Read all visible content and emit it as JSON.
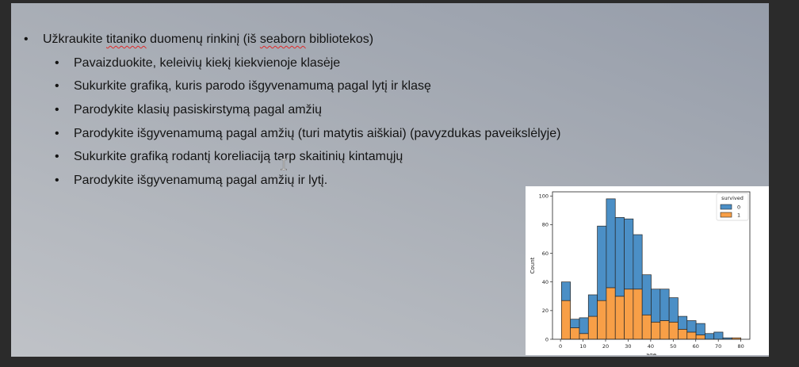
{
  "slide": {
    "bullet": "•",
    "main_item": {
      "segments": [
        {
          "text": "Užkraukite "
        },
        {
          "text": "titaniko",
          "misspelled": true
        },
        {
          "text": " duomenų rinkinį (iš "
        },
        {
          "text": "seaborn",
          "misspelled": true
        },
        {
          "text": " bibliotekos)"
        }
      ]
    },
    "sub_items": [
      "Pavaizduokite, keleivių kiekį kiekvienoje klasėje",
      "Sukurkite grafiką, kuris parodo išgyvenamumą pagal lytį ir klasę",
      "Parodykite klasių pasiskirstymą pagal amžių",
      "Parodykite išgyvenamumą pagal amžių (turi matytis aiškiai) (pavyzdukas paveikslėlyje)",
      "Sukurkite grafiką rodantį koreliaciją tarp skaitinių kintamųjų",
      "Parodykite išgyvenamumą pagal amžių ir lytį."
    ]
  },
  "cursor": {
    "icon": "text-cursor-icon"
  },
  "chart_data": {
    "type": "bar",
    "stacked": true,
    "bin_edges": [
      0.42,
      4.4,
      8.38,
      12.36,
      16.34,
      20.32,
      24.3,
      28.28,
      32.26,
      36.24,
      40.22,
      44.2,
      48.18,
      52.16,
      56.14,
      60.12,
      64.1,
      68.08,
      72.06,
      76.04,
      80.02
    ],
    "series": [
      {
        "name": "0",
        "color": "#4b8fc6",
        "values": [
          13,
          6,
          11,
          15,
          52,
          62,
          55,
          49,
          38,
          28,
          23,
          22,
          17,
          9,
          8,
          8,
          4,
          5,
          1,
          0
        ]
      },
      {
        "name": "1",
        "color": "#f89f47",
        "values": [
          27,
          8,
          4,
          16,
          27,
          36,
          30,
          35,
          35,
          17,
          12,
          13,
          12,
          7,
          5,
          3,
          0,
          0,
          0,
          1
        ]
      }
    ],
    "xlabel": "age",
    "ylabel": "Count",
    "xticks": [
      0,
      10,
      20,
      30,
      40,
      50,
      60,
      70,
      80
    ],
    "yticks": [
      0,
      20,
      40,
      60,
      80,
      100
    ],
    "xlim": [
      -3.56,
      84.0
    ],
    "ylim": [
      0,
      102.9
    ],
    "grid": false,
    "legend": {
      "title": "survived",
      "placement": "top-right"
    }
  }
}
